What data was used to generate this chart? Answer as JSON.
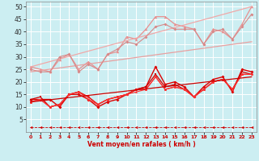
{
  "xlabel": "Vent moyen/en rafales ( km/h )",
  "background_color": "#cceef2",
  "grid_color": "#b0d8dc",
  "xlim": [
    -0.5,
    23.5
  ],
  "ylim": [
    0,
    52
  ],
  "yticks": [
    5,
    10,
    15,
    20,
    25,
    30,
    35,
    40,
    45,
    50
  ],
  "xticks": [
    0,
    1,
    2,
    3,
    4,
    5,
    6,
    7,
    8,
    9,
    10,
    11,
    12,
    13,
    14,
    15,
    16,
    17,
    18,
    19,
    20,
    21,
    22,
    23
  ],
  "series": [
    {
      "x": [
        0,
        1,
        2,
        3,
        4,
        5,
        6,
        7,
        8,
        9,
        10,
        11,
        12,
        13,
        14,
        15,
        16,
        17,
        18,
        19,
        20,
        21,
        22,
        23
      ],
      "y": [
        26,
        25,
        24,
        29,
        31,
        25,
        28,
        25,
        31,
        32,
        38,
        37,
        41,
        46,
        46,
        43,
        42,
        41,
        35,
        41,
        40,
        37,
        43,
        50
      ],
      "color": "#e89090",
      "marker": "^",
      "markersize": 2.5,
      "linewidth": 0.9
    },
    {
      "x": [
        0,
        23
      ],
      "y": [
        26,
        50
      ],
      "color": "#f0a8a8",
      "marker": "None",
      "markersize": 0,
      "linewidth": 0.9,
      "linestyle": "-"
    },
    {
      "x": [
        0,
        23
      ],
      "y": [
        24,
        36
      ],
      "color": "#e8a0a0",
      "marker": "None",
      "markersize": 0,
      "linewidth": 0.9,
      "linestyle": "-"
    },
    {
      "x": [
        0,
        1,
        2,
        3,
        4,
        5,
        6,
        7,
        8,
        9,
        10,
        11,
        12,
        13,
        14,
        15,
        16,
        17,
        18,
        19,
        20,
        21,
        22,
        23
      ],
      "y": [
        25,
        24,
        24,
        30,
        31,
        24,
        27,
        25,
        31,
        33,
        36,
        35,
        38,
        42,
        43,
        41,
        41,
        41,
        35,
        40,
        41,
        37,
        42,
        47
      ],
      "color": "#d88888",
      "marker": "D",
      "markersize": 2,
      "linewidth": 0.8
    },
    {
      "x": [
        0,
        1,
        2,
        3,
        4,
        5,
        6,
        7,
        8,
        9,
        10,
        11,
        12,
        13,
        14,
        15,
        16,
        17,
        18,
        19,
        20,
        21,
        22,
        23
      ],
      "y": [
        13,
        13,
        13,
        10,
        15,
        15,
        13,
        10,
        12,
        13,
        15,
        17,
        18,
        26,
        19,
        20,
        18,
        14,
        18,
        21,
        22,
        16,
        25,
        24
      ],
      "color": "#dd0000",
      "marker": "D",
      "markersize": 2,
      "linewidth": 1.0
    },
    {
      "x": [
        0,
        1,
        2,
        3,
        4,
        5,
        6,
        7,
        8,
        9,
        10,
        11,
        12,
        13,
        14,
        15,
        16,
        17,
        18,
        19,
        20,
        21,
        22,
        23
      ],
      "y": [
        13,
        14,
        10,
        11,
        15,
        16,
        14,
        11,
        13,
        14,
        15,
        17,
        18,
        23,
        18,
        19,
        17,
        14,
        17,
        20,
        21,
        17,
        24,
        23
      ],
      "color": "#cc0000",
      "marker": "s",
      "markersize": 2,
      "linewidth": 0.9
    },
    {
      "x": [
        0,
        1,
        2,
        3,
        4,
        5,
        6,
        7,
        8,
        9,
        10,
        11,
        12,
        13,
        14,
        15,
        16,
        17,
        18,
        19,
        20,
        21,
        22,
        23
      ],
      "y": [
        12,
        13,
        10,
        11,
        15,
        16,
        14,
        11,
        13,
        14,
        15,
        17,
        17,
        22,
        17,
        18,
        17,
        14,
        17,
        20,
        21,
        17,
        23,
        23
      ],
      "color": "#ee2020",
      "marker": "o",
      "markersize": 2,
      "linewidth": 0.9
    },
    {
      "x": [
        0,
        1,
        2,
        3,
        4,
        5,
        6,
        7,
        8,
        9,
        10,
        11,
        12,
        13,
        14,
        15,
        16,
        17,
        18,
        19,
        20,
        21,
        22,
        23
      ],
      "y": [
        12,
        13,
        10,
        11,
        15,
        16,
        13,
        11,
        13,
        14,
        15,
        16,
        17,
        22,
        17,
        18,
        17,
        14,
        17,
        20,
        21,
        17,
        23,
        23
      ],
      "color": "#ff3333",
      "marker": "^",
      "markersize": 2,
      "linewidth": 0.8
    },
    {
      "x": [
        0,
        23
      ],
      "y": [
        12,
        22
      ],
      "color": "#cc0000",
      "marker": "None",
      "markersize": 0,
      "linewidth": 0.9,
      "linestyle": "-"
    },
    {
      "x": [
        0,
        1,
        2,
        3,
        4,
        5,
        6,
        7,
        8,
        9,
        10,
        11,
        12,
        13,
        14,
        15,
        16,
        17,
        18,
        19,
        20,
        21,
        22,
        23
      ],
      "y": [
        2,
        2,
        2,
        2,
        2,
        2,
        2,
        2,
        2,
        2,
        2,
        2,
        2,
        2,
        2,
        2,
        2,
        2,
        2,
        2,
        2,
        2,
        2,
        2
      ],
      "color": "#cc0000",
      "marker": "<",
      "markersize": 2.5,
      "linewidth": 0.6,
      "linestyle": "--"
    }
  ]
}
